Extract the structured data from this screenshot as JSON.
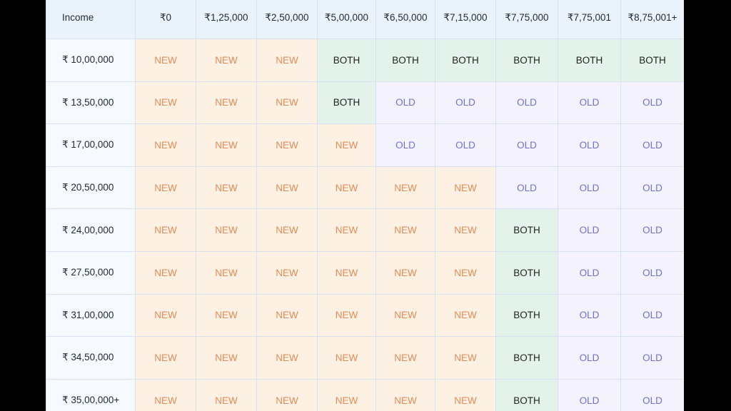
{
  "table": {
    "header_first": "Income",
    "columns": [
      "₹0",
      "₹1,25,000",
      "₹2,50,000",
      "₹5,00,000",
      "₹6,50,000",
      "₹7,15,000",
      "₹7,75,000",
      "₹7,75,001",
      "₹8,75,001+"
    ],
    "rows": [
      {
        "income": "₹ 10,00,000",
        "cells": [
          "NEW",
          "NEW",
          "NEW",
          "BOTH",
          "BOTH",
          "BOTH",
          "BOTH",
          "BOTH",
          "BOTH"
        ]
      },
      {
        "income": "₹ 13,50,000",
        "cells": [
          "NEW",
          "NEW",
          "NEW",
          "BOTH",
          "OLD",
          "OLD",
          "OLD",
          "OLD",
          "OLD"
        ]
      },
      {
        "income": "₹ 17,00,000",
        "cells": [
          "NEW",
          "NEW",
          "NEW",
          "NEW",
          "OLD",
          "OLD",
          "OLD",
          "OLD",
          "OLD"
        ]
      },
      {
        "income": "₹ 20,50,000",
        "cells": [
          "NEW",
          "NEW",
          "NEW",
          "NEW",
          "NEW",
          "NEW",
          "OLD",
          "OLD",
          "OLD"
        ]
      },
      {
        "income": "₹ 24,00,000",
        "cells": [
          "NEW",
          "NEW",
          "NEW",
          "NEW",
          "NEW",
          "NEW",
          "BOTH",
          "OLD",
          "OLD"
        ]
      },
      {
        "income": "₹ 27,50,000",
        "cells": [
          "NEW",
          "NEW",
          "NEW",
          "NEW",
          "NEW",
          "NEW",
          "BOTH",
          "OLD",
          "OLD"
        ]
      },
      {
        "income": "₹ 31,00,000",
        "cells": [
          "NEW",
          "NEW",
          "NEW",
          "NEW",
          "NEW",
          "NEW",
          "BOTH",
          "OLD",
          "OLD"
        ]
      },
      {
        "income": "₹ 34,50,000",
        "cells": [
          "NEW",
          "NEW",
          "NEW",
          "NEW",
          "NEW",
          "NEW",
          "BOTH",
          "OLD",
          "OLD"
        ]
      },
      {
        "income": "₹ 35,00,000+",
        "cells": [
          "NEW",
          "NEW",
          "NEW",
          "NEW",
          "NEW",
          "NEW",
          "BOTH",
          "OLD",
          "OLD"
        ]
      }
    ]
  },
  "colors": {
    "new_bg": "#fcf1e3",
    "new_text": "#e78a55",
    "old_bg": "#f3f2fd",
    "old_text": "#6e72d6",
    "both_bg": "#e3f2ea",
    "both_text": "#222222",
    "header_bg": "#eaf2fc",
    "grid_border": "#d7e1f2"
  }
}
